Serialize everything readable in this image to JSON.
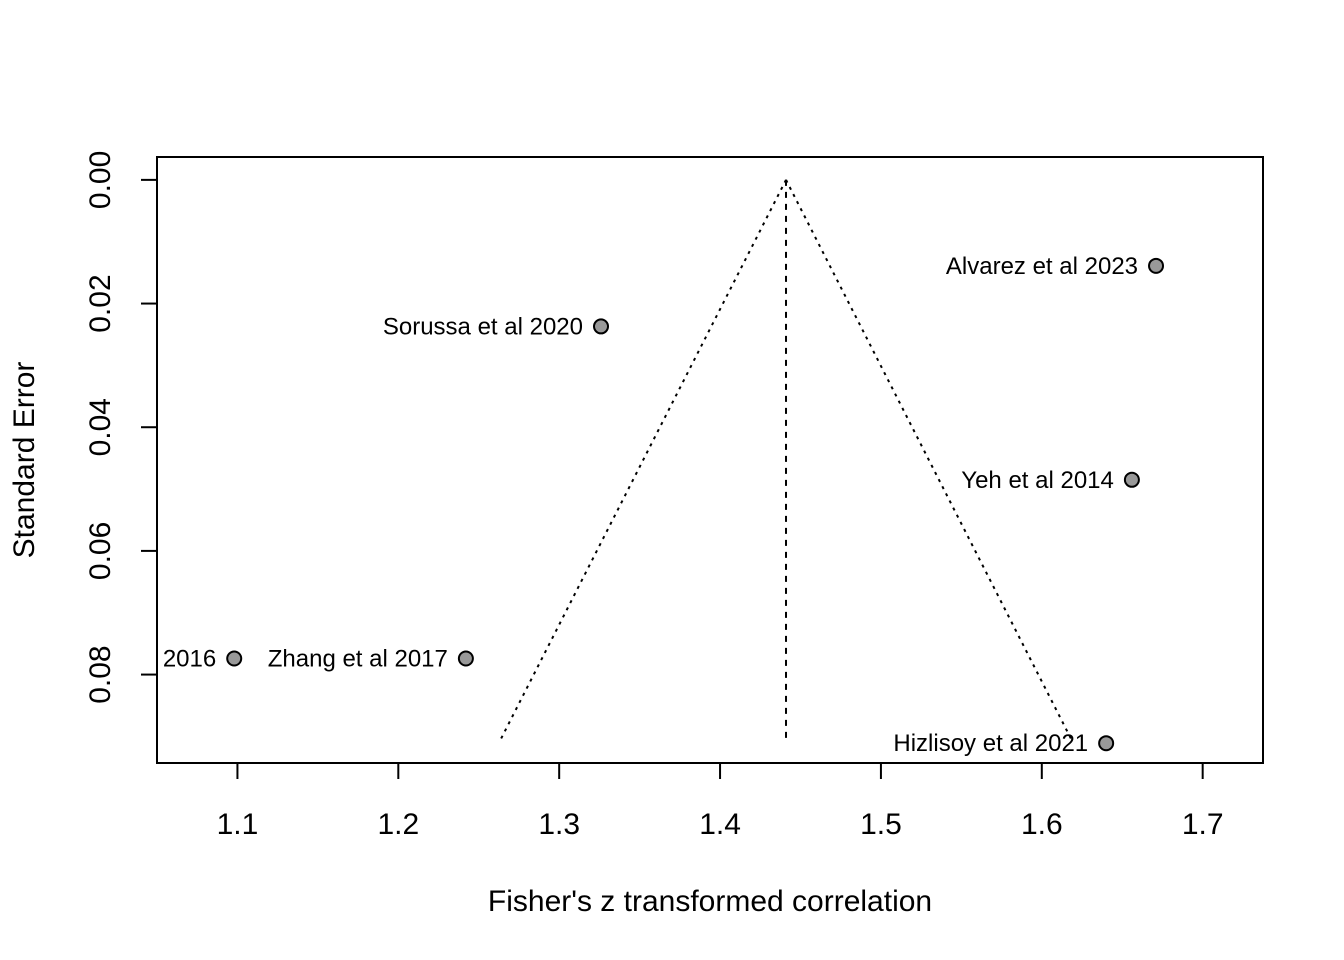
{
  "chart_data": {
    "type": "scatter",
    "subtype": "funnel",
    "title": "",
    "xlabel": "Fisher's z transformed correlation",
    "ylabel": "Standard Error",
    "xlim": [
      1.05,
      1.7375
    ],
    "ylim": [
      0.0943,
      -0.0037
    ],
    "y_reversed": true,
    "xticks": [
      1.1,
      1.2,
      1.3,
      1.4,
      1.5,
      1.6,
      1.7
    ],
    "xtick_labels": [
      "1.1",
      "1.2",
      "1.3",
      "1.4",
      "1.5",
      "1.6",
      "1.7"
    ],
    "yticks": [
      0.0,
      0.02,
      0.04,
      0.06,
      0.08
    ],
    "ytick_labels": [
      "0.00",
      "0.02",
      "0.04",
      "0.06",
      "0.08"
    ],
    "grid": false,
    "legend": "none",
    "pooled_estimate": 1.441,
    "funnel_se_max": 0.0905,
    "funnel_lines": [
      {
        "x1": 1.441,
        "y1": 0.0,
        "x2": 1.2636,
        "y2": 0.0905
      },
      {
        "x1": 1.441,
        "y1": 0.0,
        "x2": 1.6184,
        "y2": 0.0905
      }
    ],
    "points": [
      {
        "label": "Alvarez et al 2023",
        "x": 1.671,
        "y": 0.0139
      },
      {
        "label": "Sorussa et al 2020",
        "x": 1.326,
        "y": 0.0237
      },
      {
        "label": "Yeh et al 2014",
        "x": 1.656,
        "y": 0.0485
      },
      {
        "label": "2016",
        "x": 1.098,
        "y": 0.0774
      },
      {
        "label": "Zhang et al 2017",
        "x": 1.242,
        "y": 0.0774
      },
      {
        "label": "Hizlisoy et al 2021",
        "x": 1.64,
        "y": 0.0911
      }
    ],
    "point_fill": "#999999",
    "point_stroke": "#000000"
  }
}
